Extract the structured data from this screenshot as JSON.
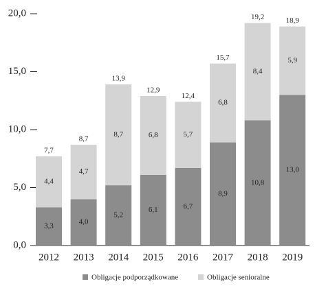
{
  "chart_data": {
    "type": "bar",
    "stacked": true,
    "categories": [
      "2012",
      "2013",
      "2014",
      "2015",
      "2016",
      "2017",
      "2018",
      "2019"
    ],
    "series": [
      {
        "name": "Obligacje podporządkowane",
        "color": "#8c8c8c",
        "values": [
          3.3,
          4.0,
          5.2,
          6.1,
          6.7,
          8.9,
          10.8,
          13.0
        ],
        "value_labels": [
          "3,3",
          "4,0",
          "5,2",
          "6,1",
          "6,7",
          "8,9",
          "10,8",
          "13,0"
        ]
      },
      {
        "name": "Obligacje senioralne",
        "color": "#d4d4d4",
        "values": [
          4.4,
          4.7,
          8.7,
          6.8,
          5.7,
          6.8,
          8.4,
          5.9
        ],
        "value_labels": [
          "4,4",
          "4,7",
          "8,7",
          "6,8",
          "5,7",
          "6,8",
          "8,4",
          "5,9"
        ]
      }
    ],
    "totals": [
      7.7,
      8.7,
      13.9,
      12.9,
      12.4,
      15.7,
      19.2,
      18.9
    ],
    "total_labels": [
      "7,7",
      "8,7",
      "13,9",
      "12,9",
      "12,4",
      "15,7",
      "19,2",
      "18,9"
    ],
    "ylim": [
      0,
      20
    ],
    "yticks": [
      {
        "value": 0,
        "label": "0,0"
      },
      {
        "value": 5,
        "label": "5,0"
      },
      {
        "value": 10,
        "label": "10,0"
      },
      {
        "value": 15,
        "label": "15,0"
      },
      {
        "value": 20,
        "label": "20,0"
      }
    ],
    "legend": "bottom"
  }
}
